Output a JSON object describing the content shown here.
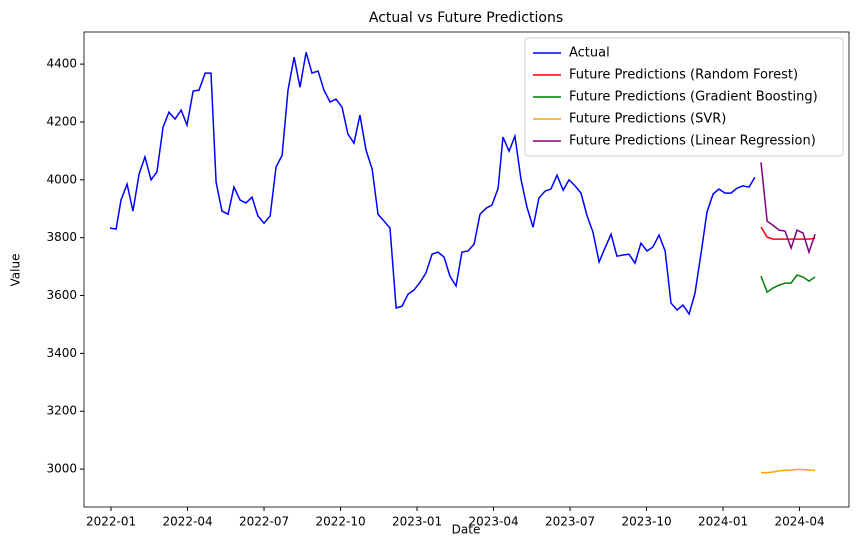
{
  "chart_data": {
    "type": "line",
    "title": "Actual vs Future Predictions",
    "x_label": "Date",
    "y_label": "Value",
    "xlim": [
      -1.06,
      28.94
    ],
    "ylim": [
      2869,
      4511
    ],
    "xticks": [
      {
        "value": 0,
        "label": "2022-01"
      },
      {
        "value": 3,
        "label": "2022-04"
      },
      {
        "value": 6,
        "label": "2022-07"
      },
      {
        "value": 9,
        "label": "2022-10"
      },
      {
        "value": 12,
        "label": "2023-01"
      },
      {
        "value": 15,
        "label": "2023-04"
      },
      {
        "value": 18,
        "label": "2023-07"
      },
      {
        "value": 21,
        "label": "2023-10"
      },
      {
        "value": 24,
        "label": "2024-01"
      },
      {
        "value": 27,
        "label": "2024-04"
      }
    ],
    "yticks": [
      3000,
      3200,
      3400,
      3600,
      3800,
      4000,
      4200,
      4400
    ],
    "grid": false,
    "legend": "upper right",
    "series": [
      {
        "name": "Actual",
        "color": "#0000ff",
        "x": [
          -0.04,
          0.2,
          0.39,
          0.63,
          0.86,
          1.1,
          1.33,
          1.57,
          1.8,
          2.04,
          2.27,
          2.51,
          2.75,
          2.98,
          3.22,
          3.45,
          3.69,
          3.92,
          4.12,
          4.35,
          4.59,
          4.82,
          5.06,
          5.29,
          5.53,
          5.76,
          6.0,
          6.24,
          6.47,
          6.71,
          6.94,
          7.18,
          7.41,
          7.65,
          7.88,
          8.12,
          8.35,
          8.59,
          8.82,
          9.06,
          9.29,
          9.53,
          9.76,
          10.0,
          10.24,
          10.47,
          10.71,
          10.94,
          11.18,
          11.41,
          11.65,
          11.88,
          12.12,
          12.35,
          12.59,
          12.82,
          13.06,
          13.29,
          13.53,
          13.76,
          14.0,
          14.24,
          14.47,
          14.71,
          14.94,
          15.18,
          15.37,
          15.61,
          15.84,
          16.08,
          16.31,
          16.55,
          16.78,
          17.02,
          17.25,
          17.49,
          17.73,
          17.96,
          18.2,
          18.43,
          18.67,
          18.9,
          19.14,
          19.37,
          19.61,
          19.84,
          20.08,
          20.31,
          20.55,
          20.78,
          21.02,
          21.25,
          21.49,
          21.73,
          21.96,
          22.2,
          22.43,
          22.67,
          22.9,
          23.14,
          23.37,
          23.61,
          23.84,
          24.08,
          24.31,
          24.55,
          24.78,
          25.02,
          25.25
        ],
        "values": [
          3833,
          3830,
          3930,
          3985,
          3892,
          4020,
          4079,
          4000,
          4027,
          4182,
          4234,
          4210,
          4241,
          4189,
          4307,
          4310,
          4369,
          4369,
          3992,
          3892,
          3881,
          3975,
          3930,
          3920,
          3940,
          3875,
          3850,
          3875,
          4044,
          4085,
          4310,
          4424,
          4320,
          4441,
          4369,
          4376,
          4310,
          4269,
          4279,
          4251,
          4158,
          4127,
          4224,
          4103,
          4037,
          3881,
          3857,
          3833,
          3557,
          3563,
          3605,
          3619,
          3646,
          3678,
          3743,
          3750,
          3733,
          3667,
          3633,
          3750,
          3754,
          3778,
          3881,
          3902,
          3913,
          3971,
          4148,
          4099,
          4151,
          4000,
          3906,
          3836,
          3937,
          3961,
          3968,
          4016,
          3964,
          4000,
          3979,
          3954,
          3875,
          3819,
          3716,
          3764,
          3812,
          3736,
          3740,
          3743,
          3712,
          3781,
          3754,
          3768,
          3809,
          3754,
          3574,
          3550,
          3567,
          3536,
          3608,
          3747,
          3888,
          3951,
          3968,
          3954,
          3954,
          3971,
          3979,
          3975,
          4009
        ]
      },
      {
        "name": "Future Predictions (Random Forest)",
        "color": "#ff0000",
        "x": [
          25.49,
          25.73,
          25.96,
          26.2,
          26.43,
          26.67,
          26.9,
          27.14,
          27.37,
          27.61
        ],
        "values": [
          3837,
          3802,
          3795,
          3795,
          3795,
          3795,
          3795,
          3795,
          3795,
          3798
        ]
      },
      {
        "name": "Future Predictions (Gradient Boosting)",
        "color": "#008000",
        "x": [
          25.49,
          25.73,
          25.96,
          26.2,
          26.43,
          26.67,
          26.9,
          27.14,
          27.37,
          27.61
        ],
        "values": [
          3667,
          3612,
          3626,
          3636,
          3643,
          3643,
          3671,
          3664,
          3650,
          3664
        ]
      },
      {
        "name": "Future Predictions (SVR)",
        "color": "#ffa500",
        "x": [
          25.49,
          25.73,
          25.96,
          26.2,
          26.43,
          26.67,
          26.9,
          27.14,
          27.37,
          27.61
        ],
        "values": [
          2988,
          2988,
          2990,
          2994,
          2996,
          2997,
          2999,
          2998,
          2997,
          2996
        ]
      },
      {
        "name": "Future Predictions (Linear Regression)",
        "color": "#800080",
        "x": [
          25.49,
          25.73,
          25.96,
          26.2,
          26.43,
          26.67,
          26.9,
          27.14,
          27.37,
          27.61
        ],
        "values": [
          4060,
          3857,
          3843,
          3826,
          3823,
          3764,
          3826,
          3816,
          3750,
          3812
        ]
      }
    ]
  }
}
